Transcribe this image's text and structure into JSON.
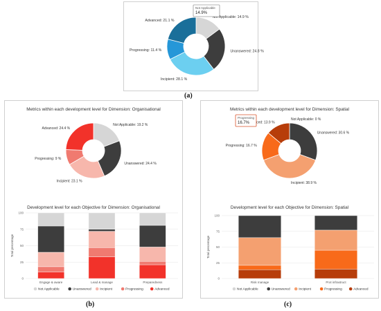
{
  "captions": {
    "a": "(a)",
    "b": "(b)",
    "c": "(c)"
  },
  "chart_data": [
    {
      "type": "pie",
      "panel": "a",
      "title": "",
      "slices": [
        {
          "label": "Not Applicable: 14.9 %",
          "value": 14.9,
          "color": "#d6d6d6"
        },
        {
          "label": "Unanswered: 24.8 %",
          "value": 24.8,
          "color": "#3d3d3d"
        },
        {
          "label": "Incipient: 28.1 %",
          "value": 28.1,
          "color": "#6ccff0"
        },
        {
          "label": "Progressing: 11.4 %",
          "value": 11.4,
          "color": "#2597d8"
        },
        {
          "label": "Advanced: 21.1 %",
          "value": 21.1,
          "color": "#1a6f9a"
        }
      ],
      "tooltip": {
        "title": "Not Applicable",
        "value": "14.9%"
      }
    },
    {
      "type": "pie",
      "panel": "b",
      "title": "Metrics within each development level for Dimension: Organisational",
      "slices": [
        {
          "label": "Not Applicable: 19.2 %",
          "value": 19.2,
          "color": "#d6d6d6"
        },
        {
          "label": "Unanswered: 24.4 %",
          "value": 24.4,
          "color": "#3d3d3d"
        },
        {
          "label": "Incipient: 23.1 %",
          "value": 23.1,
          "color": "#f7b7ac"
        },
        {
          "label": "Progressing: 9 %",
          "value": 9.0,
          "color": "#f07a70"
        },
        {
          "label": "Advanced: 24.4 %",
          "value": 24.4,
          "color": "#f2322a"
        }
      ]
    },
    {
      "type": "bar",
      "panel": "b",
      "stacked": true,
      "title": "Development level for each Objective for Dimension: Organisational",
      "ylabel": "Total percentage",
      "categories": [
        "Engage & aware",
        "Lead & manage",
        "Preparedness"
      ],
      "ylim": [
        0,
        100
      ],
      "series": [
        {
          "name": "Advanced",
          "values": [
            10,
            33,
            21
          ],
          "color": "#f2322a"
        },
        {
          "name": "Progressing",
          "values": [
            8,
            14,
            5
          ],
          "color": "#f07a70"
        },
        {
          "name": "Incipient",
          "values": [
            22,
            25,
            22
          ],
          "color": "#f7b7ac"
        },
        {
          "name": "Unanswered",
          "values": [
            40,
            3,
            33
          ],
          "color": "#3d3d3d"
        },
        {
          "name": "Not Applicable",
          "values": [
            20,
            25,
            19
          ],
          "color": "#d6d6d6"
        }
      ],
      "legend": [
        "Not Applicable",
        "Unanswered",
        "Incipient",
        "Progressing",
        "Advanced"
      ]
    },
    {
      "type": "pie",
      "panel": "c",
      "title": "Metrics within each development level for Dimension: Spatial",
      "slices": [
        {
          "label": "Not Applicable: 0 %",
          "value": 0.0,
          "color": "#d6d6d6"
        },
        {
          "label": "Unanswered: 30.6 %",
          "value": 30.6,
          "color": "#3d3d3d"
        },
        {
          "label": "Incipient: 38.9 %",
          "value": 38.9,
          "color": "#f4a070"
        },
        {
          "label": "Progressing: 16.7 %",
          "value": 16.7,
          "color": "#f86a1a"
        },
        {
          "label": "Advanced: 13.9 %",
          "value": 13.9,
          "color": "#b73d0a"
        }
      ],
      "tooltip": {
        "title": "Progressing",
        "value": "16.7%"
      }
    },
    {
      "type": "bar",
      "panel": "c",
      "stacked": true,
      "title": "Development level for each Objective for Dimension: Spatial",
      "ylabel": "Total percentage",
      "categories": [
        "Risk manage",
        "Prot infrastruct"
      ],
      "ylim": [
        0,
        100
      ],
      "series": [
        {
          "name": "Advanced",
          "values": [
            14,
            15
          ],
          "color": "#b73d0a"
        },
        {
          "name": "Progressing",
          "values": [
            7,
            30
          ],
          "color": "#f86a1a"
        },
        {
          "name": "Incipient",
          "values": [
            44,
            32
          ],
          "color": "#f4a070"
        },
        {
          "name": "Unanswered",
          "values": [
            35,
            23
          ],
          "color": "#3d3d3d"
        },
        {
          "name": "Not Applicable",
          "values": [
            0,
            0
          ],
          "color": "#d6d6d6"
        }
      ],
      "legend": [
        "Not Applicable",
        "Unanswered",
        "Incipient",
        "Progressing",
        "Advanced"
      ]
    }
  ]
}
